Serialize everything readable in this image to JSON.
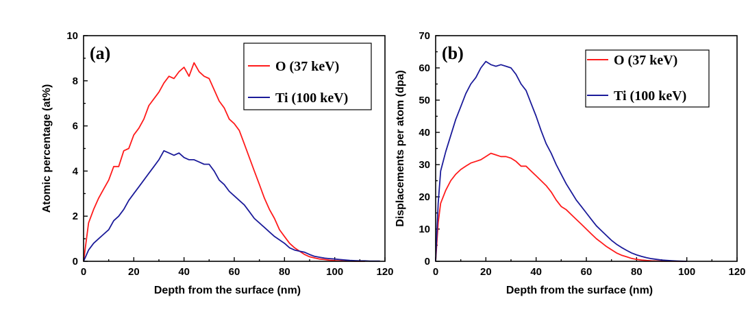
{
  "chart_data": [
    {
      "type": "line",
      "panel_label": "(a)",
      "xlabel": "Depth from the surface (nm)",
      "ylabel": "Atomic percentage (at%)",
      "xlim": [
        0,
        120
      ],
      "ylim": [
        0,
        10
      ],
      "xticks": [
        0,
        20,
        40,
        60,
        80,
        100,
        120
      ],
      "xtick_labels": [
        "0",
        "20",
        "40",
        "60",
        "80",
        "100",
        "120"
      ],
      "yticks": [
        0,
        2,
        4,
        6,
        8,
        10
      ],
      "ytick_labels": [
        "0",
        "2",
        "4",
        "6",
        "8",
        "10"
      ],
      "legend_position": "top-right",
      "series": [
        {
          "name": "O (37 keV)",
          "color": "#ff1a1a",
          "x": [
            0,
            2,
            4,
            6,
            8,
            10,
            12,
            14,
            16,
            18,
            20,
            22,
            24,
            26,
            28,
            30,
            32,
            34,
            36,
            38,
            40,
            42,
            44,
            46,
            48,
            50,
            52,
            54,
            56,
            58,
            60,
            62,
            64,
            66,
            68,
            70,
            72,
            74,
            76,
            78,
            80,
            82,
            84,
            86,
            88,
            90,
            92,
            94,
            96,
            98,
            100,
            102,
            104,
            106,
            108,
            110,
            112
          ],
          "y": [
            0,
            1.7,
            2.3,
            2.8,
            3.2,
            3.6,
            4.2,
            4.2,
            4.9,
            5.0,
            5.6,
            5.9,
            6.3,
            6.9,
            7.2,
            7.5,
            7.9,
            8.2,
            8.1,
            8.4,
            8.6,
            8.2,
            8.8,
            8.4,
            8.2,
            8.1,
            7.6,
            7.1,
            6.8,
            6.3,
            6.1,
            5.8,
            5.2,
            4.6,
            4.0,
            3.4,
            2.8,
            2.3,
            1.9,
            1.4,
            1.1,
            0.8,
            0.6,
            0.45,
            0.3,
            0.2,
            0.15,
            0.1,
            0.08,
            0.05,
            0.03,
            0.02,
            0.01,
            0.01,
            0,
            0,
            0
          ]
        },
        {
          "name": "Ti (100 keV)",
          "color": "#1a1a99",
          "x": [
            0,
            2,
            4,
            6,
            8,
            10,
            12,
            14,
            16,
            18,
            20,
            22,
            24,
            26,
            28,
            30,
            32,
            34,
            36,
            38,
            40,
            42,
            44,
            46,
            48,
            50,
            52,
            54,
            56,
            58,
            60,
            62,
            64,
            66,
            68,
            70,
            72,
            74,
            76,
            78,
            80,
            82,
            84,
            86,
            88,
            90,
            92,
            94,
            96,
            98,
            100,
            102,
            104,
            106,
            108,
            110,
            112,
            114,
            116,
            118
          ],
          "y": [
            0,
            0.5,
            0.8,
            1.0,
            1.2,
            1.4,
            1.8,
            2.0,
            2.3,
            2.7,
            3.0,
            3.3,
            3.6,
            3.9,
            4.2,
            4.5,
            4.9,
            4.8,
            4.7,
            4.8,
            4.6,
            4.5,
            4.5,
            4.4,
            4.3,
            4.3,
            4.0,
            3.6,
            3.4,
            3.1,
            2.9,
            2.7,
            2.5,
            2.2,
            1.9,
            1.7,
            1.5,
            1.3,
            1.1,
            0.95,
            0.8,
            0.6,
            0.5,
            0.45,
            0.4,
            0.3,
            0.22,
            0.18,
            0.14,
            0.12,
            0.1,
            0.08,
            0.06,
            0.04,
            0.03,
            0.02,
            0.02,
            0.01,
            0.01,
            0.01
          ]
        }
      ]
    },
    {
      "type": "line",
      "panel_label": "(b)",
      "xlabel": "Depth from the surface (nm)",
      "ylabel": "Displacements per atom (dpa)",
      "xlim": [
        0,
        120
      ],
      "ylim": [
        0,
        70
      ],
      "xticks": [
        0,
        20,
        40,
        60,
        80,
        100,
        120
      ],
      "xtick_labels": [
        "0",
        "20",
        "40",
        "60",
        "80",
        "100",
        "120"
      ],
      "yticks": [
        0,
        10,
        20,
        30,
        40,
        50,
        60,
        70
      ],
      "ytick_labels": [
        "0",
        "10",
        "20",
        "30",
        "40",
        "50",
        "60",
        "70"
      ],
      "legend_position": "top-right",
      "series": [
        {
          "name": "O (37 keV)",
          "color": "#ff1a1a",
          "x": [
            0,
            1,
            2,
            4,
            6,
            8,
            10,
            12,
            14,
            16,
            18,
            20,
            22,
            24,
            26,
            28,
            30,
            32,
            34,
            36,
            38,
            40,
            42,
            44,
            46,
            48,
            50,
            52,
            54,
            56,
            58,
            60,
            62,
            64,
            66,
            68,
            70,
            72,
            74,
            76,
            78,
            80,
            82,
            84,
            86,
            88,
            90,
            92,
            94,
            96,
            98,
            100
          ],
          "y": [
            0,
            12,
            18,
            22,
            25,
            27,
            28.5,
            29.5,
            30.5,
            31,
            31.5,
            32.5,
            33.5,
            33,
            32.5,
            32.5,
            32,
            31,
            29.5,
            29.5,
            28,
            26.5,
            25,
            23.5,
            21.5,
            19,
            17,
            16,
            14.5,
            13,
            11.5,
            10,
            8.5,
            7,
            5.8,
            4.6,
            3.6,
            2.6,
            1.9,
            1.4,
            0.9,
            0.6,
            0.4,
            0.25,
            0.15,
            0.1,
            0.05,
            0.03,
            0.02,
            0.01,
            0,
            0
          ]
        },
        {
          "name": "Ti (100 keV)",
          "color": "#1a1a99",
          "x": [
            0,
            1,
            2,
            4,
            6,
            8,
            10,
            12,
            14,
            16,
            18,
            20,
            22,
            24,
            26,
            28,
            30,
            32,
            34,
            36,
            38,
            40,
            42,
            44,
            46,
            48,
            50,
            52,
            54,
            56,
            58,
            60,
            62,
            64,
            66,
            68,
            70,
            72,
            74,
            76,
            78,
            80,
            82,
            84,
            86,
            88,
            90,
            92,
            94,
            96,
            98,
            100
          ],
          "y": [
            0,
            18,
            28,
            34,
            39,
            44,
            48,
            52,
            55,
            57,
            60,
            62,
            61,
            60.5,
            61,
            60.5,
            60,
            58,
            55,
            53,
            49,
            45,
            40.5,
            36.5,
            33.5,
            30,
            27,
            24,
            21.5,
            19,
            17,
            15,
            13,
            11,
            9.5,
            8,
            6.5,
            5.3,
            4.3,
            3.4,
            2.6,
            2,
            1.5,
            1.1,
            0.8,
            0.6,
            0.4,
            0.3,
            0.2,
            0.1,
            0.05,
            0
          ]
        }
      ]
    }
  ]
}
